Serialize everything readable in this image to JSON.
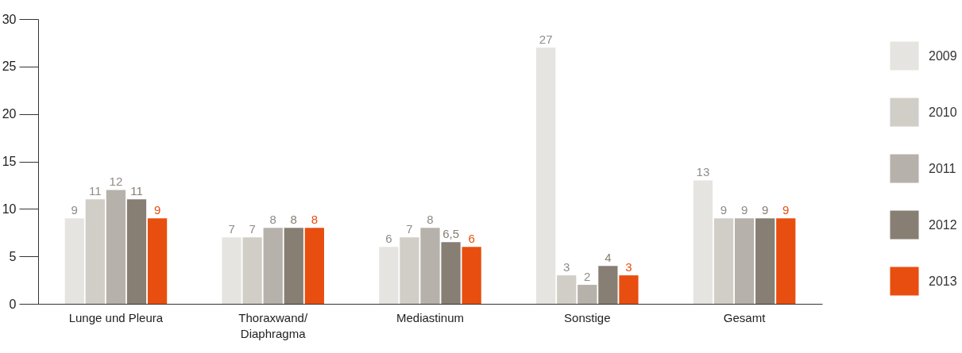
{
  "chart_data": {
    "type": "bar",
    "categories": [
      "Lunge und Pleura",
      "Thoraxwand/Diaphragma",
      "Mediastinum",
      "Sonstige",
      "Gesamt"
    ],
    "series": [
      {
        "name": "2009",
        "color": "#e6e4e1",
        "values": [
          9,
          7,
          6,
          27,
          13
        ],
        "value_labels": [
          "9",
          "7",
          "6",
          "27",
          "13"
        ]
      },
      {
        "name": "2010",
        "color": "#d1cdc7",
        "values": [
          11,
          7,
          7,
          3,
          9
        ],
        "value_labels": [
          "11",
          "7",
          "7",
          "3",
          "9"
        ]
      },
      {
        "name": "2011",
        "color": "#b6b1aa",
        "values": [
          12,
          8,
          8,
          2,
          9
        ],
        "value_labels": [
          "12",
          "8",
          "8",
          "2",
          "9"
        ]
      },
      {
        "name": "2012",
        "color": "#877f74",
        "values": [
          11,
          8,
          6.5,
          4,
          9
        ],
        "value_labels": [
          "11",
          "8",
          "6,5",
          "4",
          "9"
        ]
      },
      {
        "name": "2013",
        "color": "#e84e0f",
        "values": [
          9,
          8,
          6,
          3,
          9
        ],
        "value_labels": [
          "9",
          "8",
          "6",
          "3",
          "9"
        ]
      }
    ],
    "ylim": [
      0,
      30
    ],
    "yticks": [
      0,
      5,
      10,
      15,
      20,
      25,
      30
    ],
    "grid": false,
    "legend": "right"
  }
}
